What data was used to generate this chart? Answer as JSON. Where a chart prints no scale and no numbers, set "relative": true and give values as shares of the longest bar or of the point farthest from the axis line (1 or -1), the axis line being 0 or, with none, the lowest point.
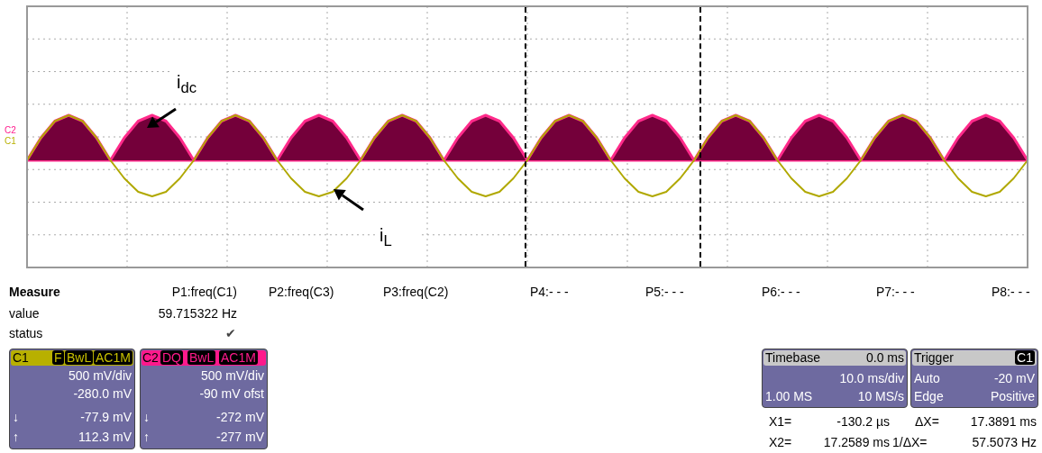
{
  "chart_data": {
    "type": "line",
    "relative": true,
    "grid": true,
    "legend": false,
    "marker": "none",
    "line_style": "solid",
    "categories": [
      null,
      null,
      null,
      null,
      null,
      null,
      null,
      null,
      null,
      null,
      null,
      null,
      null,
      null,
      null,
      null,
      null,
      null,
      null,
      null,
      null,
      null,
      null,
      null,
      null,
      null,
      null,
      null,
      null,
      null,
      null,
      null,
      null,
      null,
      null,
      null,
      null,
      null,
      null,
      null,
      null,
      null,
      null,
      null,
      null,
      null,
      null,
      null,
      null,
      null,
      null,
      null,
      null,
      null,
      null,
      null,
      null,
      null,
      null,
      null,
      null,
      null,
      null,
      null,
      null,
      null,
      null,
      null,
      null,
      null,
      null,
      null,
      null
    ],
    "series": [
      {
        "name": "i$_{dc}$",
        "type": "area",
        "color": "#74003a",
        "values": [
          0,
          0.5,
          0.87,
          1,
          0.87,
          0.5,
          0,
          0.5,
          0.87,
          1,
          0.87,
          0.5,
          0,
          0.5,
          0.87,
          1,
          0.87,
          0.5,
          0,
          0.5,
          0.87,
          1,
          0.87,
          0.5,
          0,
          0.5,
          0.87,
          1,
          0.87,
          0.5,
          0,
          0.5,
          0.87,
          1,
          0.87,
          0.5,
          0,
          0.5,
          0.87,
          1,
          0.87,
          0.5,
          0,
          0.5,
          0.87,
          1,
          0.87,
          0.5,
          0,
          0.5,
          0.87,
          1,
          0.87,
          0.5,
          0,
          0.5,
          0.87,
          1,
          0.87,
          0.5,
          0,
          0.5,
          0.87,
          1,
          0.87,
          0.5,
          0,
          0.5,
          0.87,
          1,
          0.87,
          0.5,
          0
        ]
      },
      {
        "name": "i$_{L}$",
        "color": "#b0a800",
        "values": [
          0,
          0.5,
          0.87,
          1,
          0.87,
          0.5,
          0,
          -0.4,
          -0.7,
          -0.8,
          -0.7,
          -0.4,
          0,
          0.5,
          0.87,
          1,
          0.87,
          0.5,
          0,
          -0.4,
          -0.7,
          -0.8,
          -0.7,
          -0.4,
          0,
          0.5,
          0.87,
          1,
          0.87,
          0.5,
          0,
          -0.4,
          -0.7,
          -0.8,
          -0.7,
          -0.4,
          0,
          0.5,
          0.87,
          1,
          0.87,
          0.5,
          0,
          -0.4,
          -0.7,
          -0.8,
          -0.7,
          -0.4,
          0,
          0.5,
          0.87,
          1,
          0.87,
          0.5,
          0,
          -0.4,
          -0.7,
          -0.8,
          -0.7,
          -0.4,
          0,
          0.5,
          0.87,
          1,
          0.87,
          0.5,
          0,
          -0.4,
          -0.7,
          -0.8,
          -0.7,
          -0.4,
          0
        ]
      }
    ],
    "annotations": [
      "Measure",
      "value",
      "status",
      "P1:freq(C1)",
      "59.715322 Hz",
      "P2:freq(C3)",
      "P3:freq(C2)",
      "P4:- - -",
      "P5:- - -",
      "P6:- - -",
      "P7:- - -",
      "P8:- - -",
      "C1",
      "F",
      "BwL",
      "AC1M",
      "500 mV/div",
      "-280.0 mV",
      "↓",
      "-77.9 mV",
      "↑",
      "112.3 mV",
      "C2",
      "DQ",
      "BwL",
      "AC1M",
      "500 mV/div",
      "-90 mV ofst",
      "↓",
      "-272 mV",
      "↑",
      "-277 mV",
      "Timebase",
      "0.0 ms",
      "10.0 ms/div",
      "1.00 MS",
      "10 MS/s",
      "Trigger",
      "C1",
      "Auto",
      "-20 mV",
      "Edge",
      "Positive",
      "X1=",
      "-130.2 µs",
      "ΔX=",
      "17.3891 ms",
      "X2=",
      "17.2589 ms",
      "1/ΔX=",
      "57.5073 Hz",
      "C2",
      "C1",
      "✔"
    ]
  }
}
